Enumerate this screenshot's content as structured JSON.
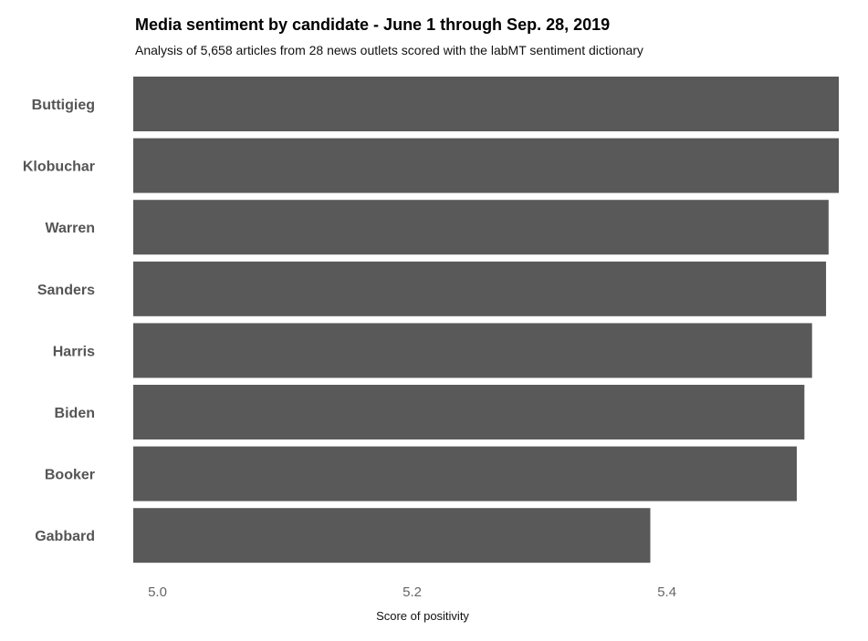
{
  "chart_data": {
    "type": "bar",
    "orientation": "horizontal",
    "title": "Media sentiment by candidate - June 1 through Sep. 28, 2019",
    "subtitle": "Analysis of 5,658 articles from 28 news outlets scored with the labMT sentiment dictionary",
    "xlabel": "Score of positivity",
    "ylabel": "",
    "categories": [
      "Buttigieg",
      "Klobuchar",
      "Warren",
      "Sanders",
      "Harris",
      "Biden",
      "Booker",
      "Gabbard"
    ],
    "values": [
      5.535,
      5.535,
      5.527,
      5.525,
      5.514,
      5.508,
      5.502,
      5.387
    ],
    "xlim": [
      4.981,
      5.535
    ],
    "xticks": [
      "5.0",
      "5.2",
      "5.4"
    ],
    "grid": false,
    "legend": "none",
    "bar_color": "#595959"
  }
}
